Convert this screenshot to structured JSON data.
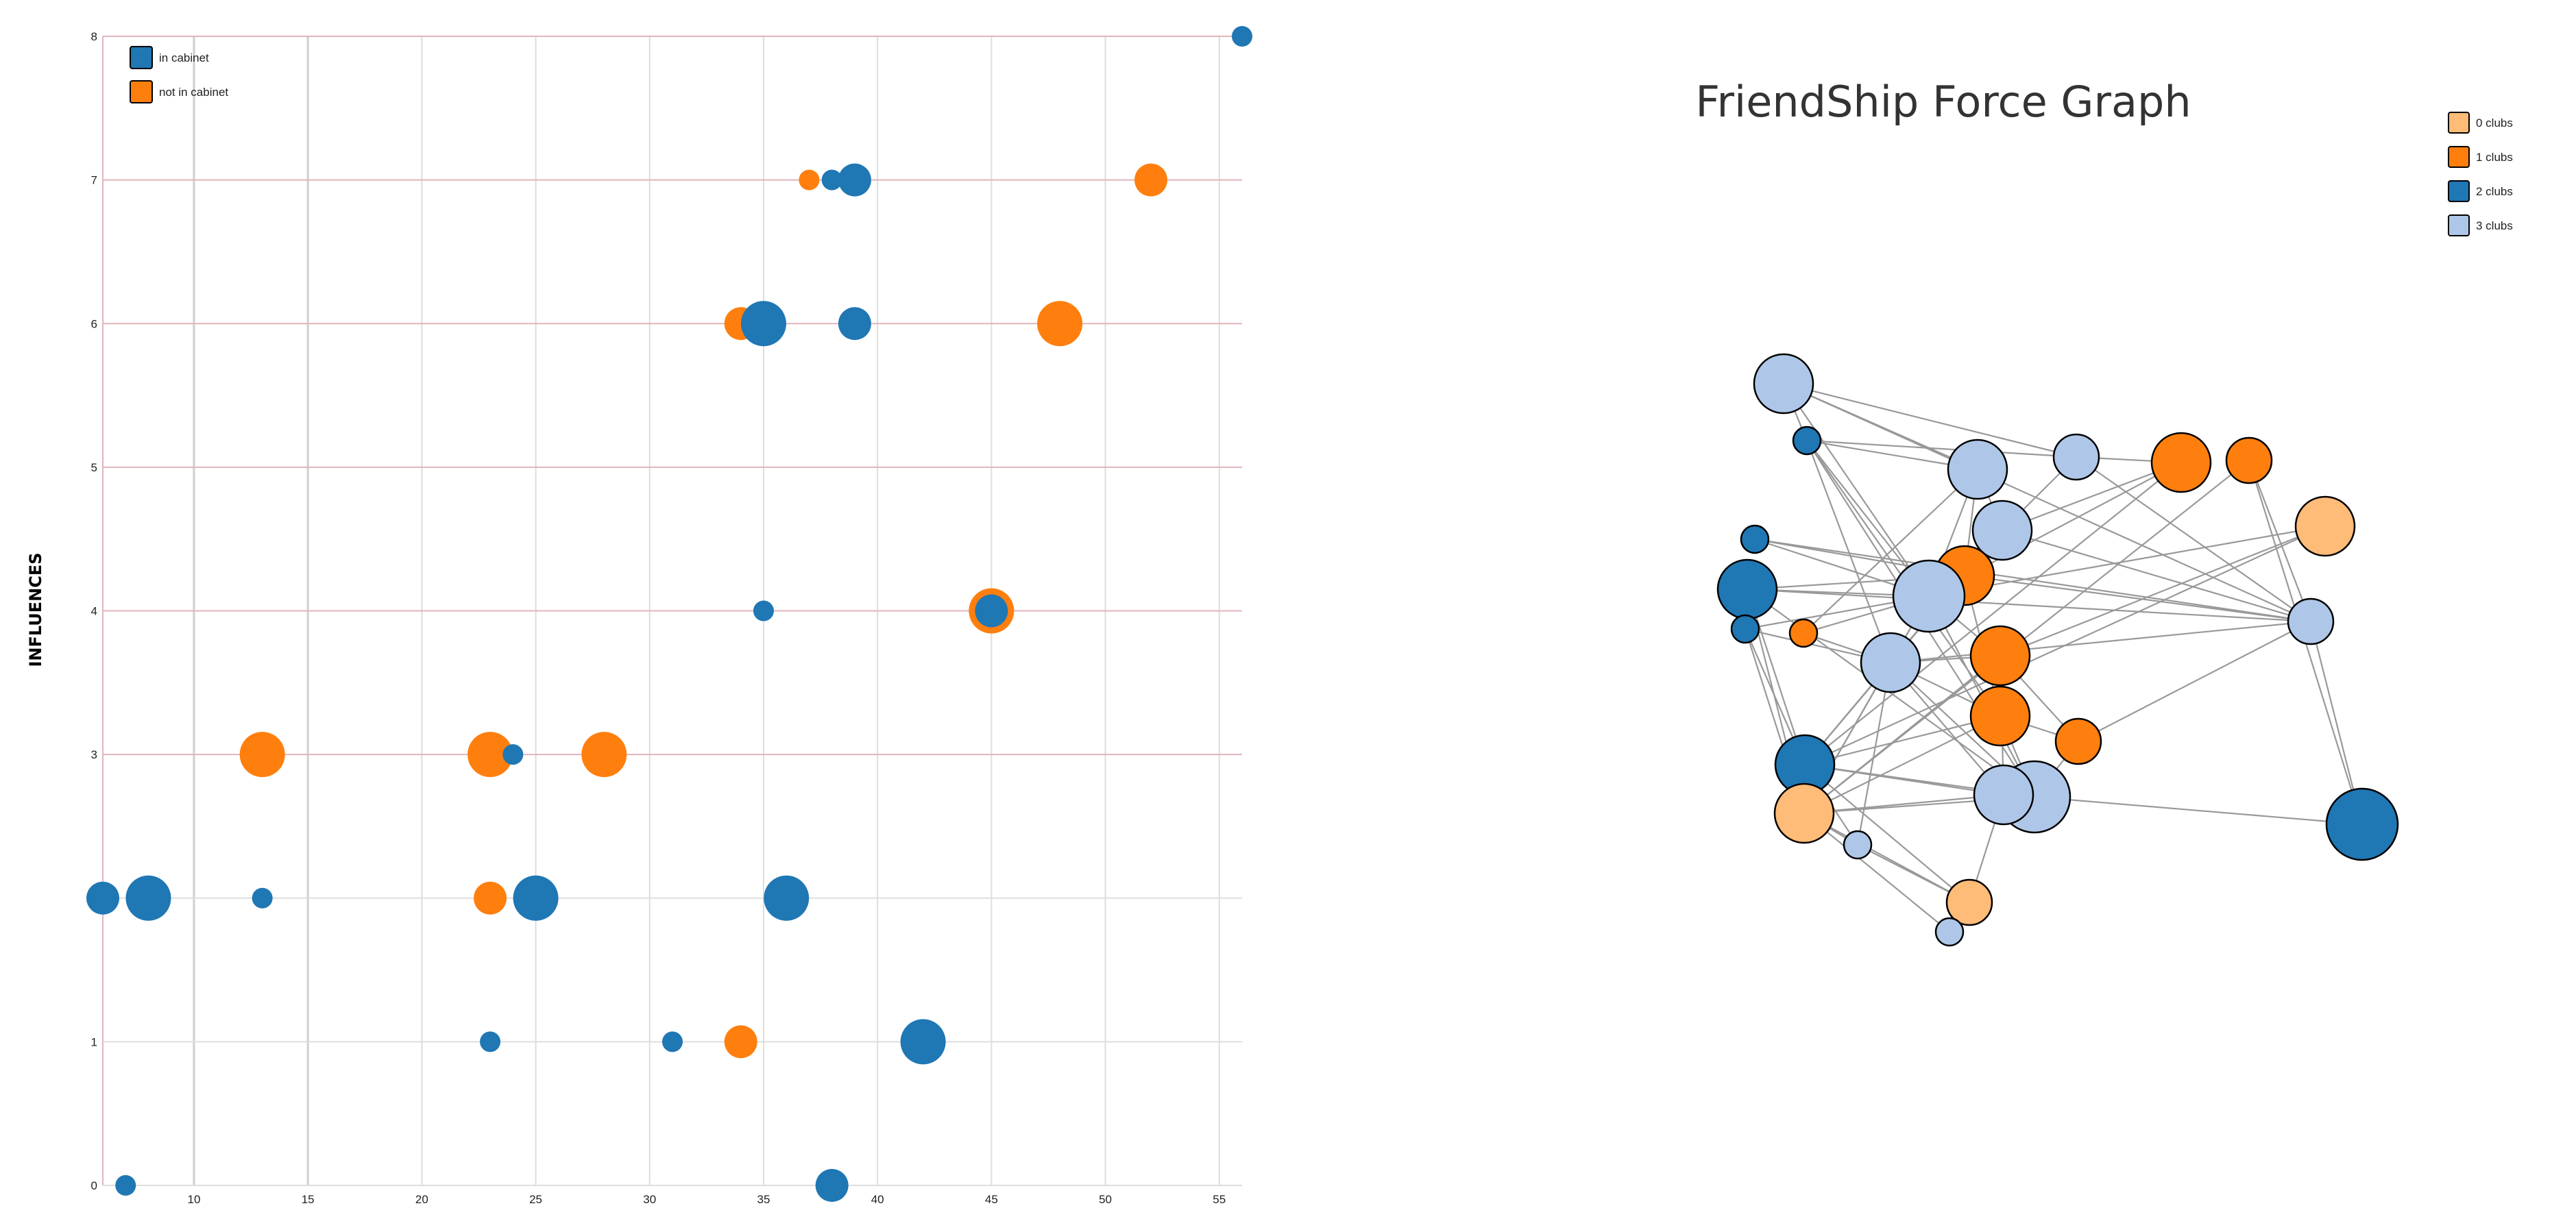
{
  "colors": {
    "in_cabinet": "#1f77b4",
    "not_in_cabinet": "#ff7f0e",
    "clubs_0": "#ffbb78",
    "clubs_1": "#ff7f0e",
    "clubs_2": "#1f77b4",
    "clubs_3": "#aec7e8",
    "edge": "#999999",
    "grid": "#dddddd",
    "grid_major": "#e0b5bb"
  },
  "chart_data": [
    {
      "type": "scatter",
      "title": "",
      "xlabel": "",
      "ylabel": "INFLUENCES",
      "xlim": [
        6,
        56
      ],
      "ylim": [
        0,
        8
      ],
      "x_ticks": [
        "10",
        "15",
        "20",
        "25",
        "30",
        "35",
        "40",
        "45",
        "50",
        "55"
      ],
      "y_ticks": [
        "0",
        "1",
        "2",
        "3",
        "4",
        "5",
        "6",
        "7",
        "8"
      ],
      "y_tick_labels_visible": [
        "0",
        "1",
        "",
        "3",
        "4",
        "5",
        "6",
        "7",
        "8"
      ],
      "legend": [
        "in cabinet",
        "not in cabinet"
      ],
      "legend_position": "top-left",
      "grid": true,
      "series": [
        {
          "name": "in cabinet",
          "points": [
            {
              "x": 56,
              "y": 8,
              "size": "s"
            },
            {
              "x": 38,
              "y": 7,
              "size": "s"
            },
            {
              "x": 39,
              "y": 7,
              "size": "m"
            },
            {
              "x": 35,
              "y": 6,
              "size": "l"
            },
            {
              "x": 39,
              "y": 6,
              "size": "m"
            },
            {
              "x": 35,
              "y": 4,
              "size": "s"
            },
            {
              "x": 45,
              "y": 4,
              "size": "m"
            },
            {
              "x": 24,
              "y": 3,
              "size": "s"
            },
            {
              "x": 6,
              "y": 2,
              "size": "m"
            },
            {
              "x": 8,
              "y": 2,
              "size": "l"
            },
            {
              "x": 13,
              "y": 2,
              "size": "s"
            },
            {
              "x": 25,
              "y": 2,
              "size": "l"
            },
            {
              "x": 36,
              "y": 2,
              "size": "l"
            },
            {
              "x": 23,
              "y": 1,
              "size": "s"
            },
            {
              "x": 31,
              "y": 1,
              "size": "s"
            },
            {
              "x": 42,
              "y": 1,
              "size": "l"
            },
            {
              "x": 7,
              "y": 0,
              "size": "s"
            },
            {
              "x": 38,
              "y": 0,
              "size": "m"
            }
          ]
        },
        {
          "name": "not in cabinet",
          "points": [
            {
              "x": 37,
              "y": 7,
              "size": "s"
            },
            {
              "x": 52,
              "y": 7,
              "size": "m"
            },
            {
              "x": 34,
              "y": 6,
              "size": "m"
            },
            {
              "x": 48,
              "y": 6,
              "size": "l"
            },
            {
              "x": 45,
              "y": 4,
              "size": "l"
            },
            {
              "x": 13,
              "y": 3,
              "size": "l"
            },
            {
              "x": 23,
              "y": 3,
              "size": "l"
            },
            {
              "x": 28,
              "y": 3,
              "size": "l"
            },
            {
              "x": 23,
              "y": 2,
              "size": "m"
            },
            {
              "x": 34,
              "y": 1,
              "size": "m"
            }
          ]
        }
      ]
    },
    {
      "type": "network",
      "title": "FriendShip Force Graph",
      "legend": [
        "0 clubs",
        "1 clubs",
        "2 clubs",
        "3 clubs"
      ],
      "legend_position": "top-right",
      "nodes": [
        {
          "id": "n1",
          "clubs": 3,
          "size": "l"
        },
        {
          "id": "n2",
          "clubs": 2,
          "size": "s"
        },
        {
          "id": "n3",
          "clubs": 3,
          "size": "l"
        },
        {
          "id": "n4",
          "clubs": 3,
          "size": "m"
        },
        {
          "id": "n5",
          "clubs": 1,
          "size": "l"
        },
        {
          "id": "n6",
          "clubs": 1,
          "size": "m"
        },
        {
          "id": "n7",
          "clubs": 0,
          "size": "l"
        },
        {
          "id": "n8",
          "clubs": 2,
          "size": "s"
        },
        {
          "id": "n9",
          "clubs": 3,
          "size": "l"
        },
        {
          "id": "n10",
          "clubs": 2,
          "size": "l"
        },
        {
          "id": "n11",
          "clubs": 1,
          "size": "l"
        },
        {
          "id": "n12",
          "clubs": 3,
          "size": "xl"
        },
        {
          "id": "n13",
          "clubs": 2,
          "size": "s"
        },
        {
          "id": "n14",
          "clubs": 1,
          "size": "s"
        },
        {
          "id": "n15",
          "clubs": 3,
          "size": "m"
        },
        {
          "id": "n16",
          "clubs": 3,
          "size": "l"
        },
        {
          "id": "n17",
          "clubs": 1,
          "size": "l"
        },
        {
          "id": "n18",
          "clubs": 1,
          "size": "l"
        },
        {
          "id": "n19",
          "clubs": 1,
          "size": "m"
        },
        {
          "id": "n20",
          "clubs": 2,
          "size": "l"
        },
        {
          "id": "n21",
          "clubs": 0,
          "size": "l"
        },
        {
          "id": "n22",
          "clubs": 3,
          "size": "s"
        },
        {
          "id": "n23",
          "clubs": 2,
          "size": "s"
        },
        {
          "id": "n24",
          "clubs": 3,
          "size": "xl"
        },
        {
          "id": "n25",
          "clubs": 3,
          "size": "l"
        },
        {
          "id": "n26",
          "clubs": 2,
          "size": "xl"
        },
        {
          "id": "n27",
          "clubs": 0,
          "size": "m"
        },
        {
          "id": "n28",
          "clubs": 3,
          "size": "s"
        }
      ],
      "links": [
        [
          "n1",
          "n2"
        ],
        [
          "n1",
          "n4"
        ],
        [
          "n1",
          "n3"
        ],
        [
          "n1",
          "n15"
        ],
        [
          "n1",
          "n12"
        ],
        [
          "n2",
          "n4"
        ],
        [
          "n2",
          "n3"
        ],
        [
          "n2",
          "n12"
        ],
        [
          "n2",
          "n18"
        ],
        [
          "n2",
          "n16"
        ],
        [
          "n2",
          "n24"
        ],
        [
          "n3",
          "n9"
        ],
        [
          "n3",
          "n12"
        ],
        [
          "n3",
          "n11"
        ],
        [
          "n3",
          "n14"
        ],
        [
          "n4",
          "n5"
        ],
        [
          "n4",
          "n15"
        ],
        [
          "n4",
          "n9"
        ],
        [
          "n5",
          "n9"
        ],
        [
          "n5",
          "n20"
        ],
        [
          "n5",
          "n12"
        ],
        [
          "n6",
          "n15"
        ],
        [
          "n6",
          "n26"
        ],
        [
          "n6",
          "n21"
        ],
        [
          "n7",
          "n12"
        ],
        [
          "n7",
          "n17"
        ],
        [
          "n7",
          "n20"
        ],
        [
          "n8",
          "n12"
        ],
        [
          "n8",
          "n15"
        ],
        [
          "n8",
          "n11"
        ],
        [
          "n9",
          "n12"
        ],
        [
          "n9",
          "n16"
        ],
        [
          "n9",
          "n20"
        ],
        [
          "n9",
          "n15"
        ],
        [
          "n10",
          "n11"
        ],
        [
          "n10",
          "n12"
        ],
        [
          "n10",
          "n15"
        ],
        [
          "n10",
          "n21"
        ],
        [
          "n10",
          "n20"
        ],
        [
          "n10",
          "n24"
        ],
        [
          "n11",
          "n15"
        ],
        [
          "n11",
          "n18"
        ],
        [
          "n11",
          "n20"
        ],
        [
          "n12",
          "n17"
        ],
        [
          "n12",
          "n21"
        ],
        [
          "n12",
          "n24"
        ],
        [
          "n12",
          "n16"
        ],
        [
          "n13",
          "n20"
        ],
        [
          "n13",
          "n21"
        ],
        [
          "n13",
          "n12"
        ],
        [
          "n13",
          "n16"
        ],
        [
          "n14",
          "n16"
        ],
        [
          "n14",
          "n12"
        ],
        [
          "n15",
          "n19"
        ],
        [
          "n15",
          "n26"
        ],
        [
          "n15",
          "n16"
        ],
        [
          "n16",
          "n20"
        ],
        [
          "n16",
          "n21"
        ],
        [
          "n16",
          "n22"
        ],
        [
          "n16",
          "n25"
        ],
        [
          "n16",
          "n24"
        ],
        [
          "n16",
          "n18"
        ],
        [
          "n17",
          "n21"
        ],
        [
          "n17",
          "n25"
        ],
        [
          "n17",
          "n16"
        ],
        [
          "n18",
          "n24"
        ],
        [
          "n18",
          "n19"
        ],
        [
          "n18",
          "n20"
        ],
        [
          "n18",
          "n21"
        ],
        [
          "n19",
          "n24"
        ],
        [
          "n19",
          "n17"
        ],
        [
          "n20",
          "n21"
        ],
        [
          "n20",
          "n22"
        ],
        [
          "n20",
          "n25"
        ],
        [
          "n20",
          "n24"
        ],
        [
          "n20",
          "n27"
        ],
        [
          "n21",
          "n25"
        ],
        [
          "n21",
          "n24"
        ],
        [
          "n21",
          "n22"
        ],
        [
          "n21",
          "n27"
        ],
        [
          "n22",
          "n27"
        ],
        [
          "n23",
          "n24"
        ],
        [
          "n24",
          "n25"
        ],
        [
          "n24",
          "n26"
        ],
        [
          "n25",
          "n27"
        ],
        [
          "n27",
          "n28"
        ],
        [
          "n21",
          "n28"
        ]
      ]
    }
  ]
}
